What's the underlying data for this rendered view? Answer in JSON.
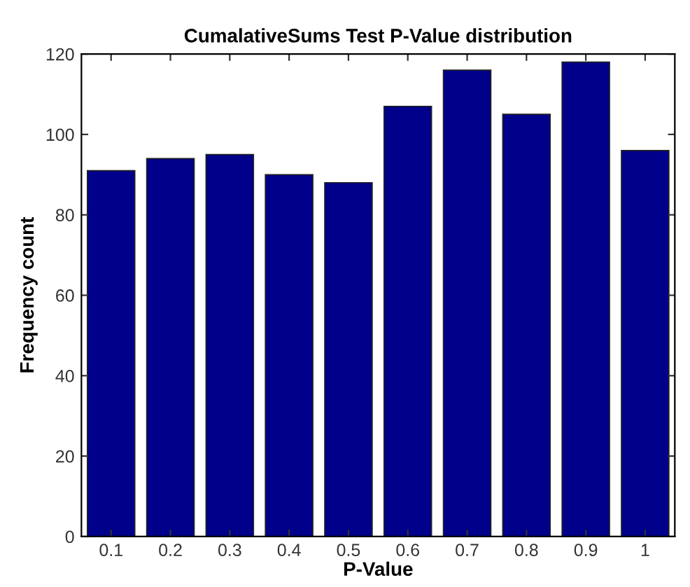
{
  "chart_data": {
    "type": "bar",
    "title": "CumalativeSums Test P-Value distribution",
    "xlabel": "P-Value",
    "ylabel": "Frequency count",
    "x": [
      0.1,
      0.2,
      0.3,
      0.4,
      0.5,
      0.6,
      0.7,
      0.8,
      0.9,
      1
    ],
    "values": [
      91,
      94,
      95,
      90,
      88,
      107,
      116,
      105,
      118,
      96
    ],
    "color": "#00008b",
    "xlim": [
      0.05,
      1.05
    ],
    "xticks": [
      {
        "value": 0.1,
        "label": "0.1"
      },
      {
        "value": 0.2,
        "label": "0.2"
      },
      {
        "value": 0.3,
        "label": "0.3"
      },
      {
        "value": 0.4,
        "label": "0.4"
      },
      {
        "value": 0.5,
        "label": "0.5"
      },
      {
        "value": 0.6,
        "label": "0.6"
      },
      {
        "value": 0.7,
        "label": "0.7"
      },
      {
        "value": 0.8,
        "label": "0.8"
      },
      {
        "value": 0.9,
        "label": "0.9"
      },
      1
    ],
    "ylim": [
      0,
      120
    ],
    "yticks": [
      0,
      20,
      40,
      60,
      80,
      100,
      120
    ],
    "grid": false
  }
}
